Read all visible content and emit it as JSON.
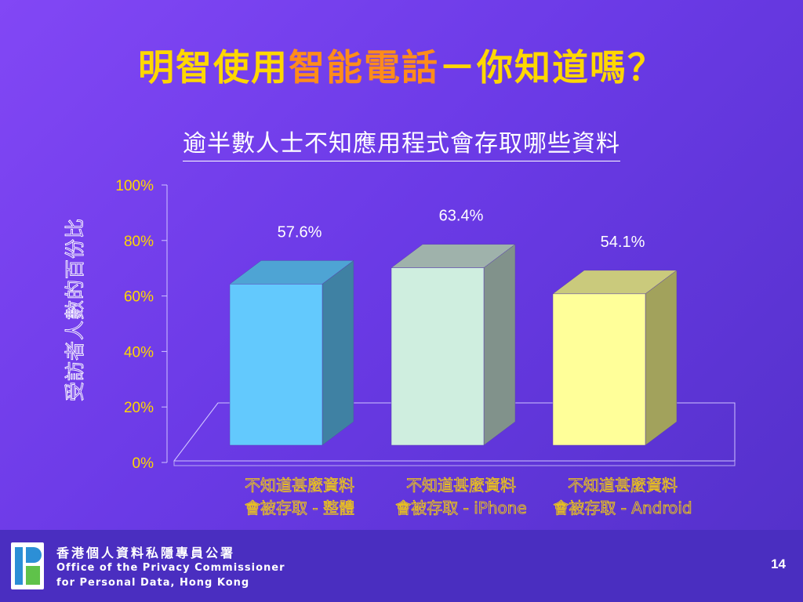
{
  "slide": {
    "title_part1": "明智使用",
    "title_part2": "智能電話",
    "title_part3": "－你知道嗎？",
    "subtitle": "逾半數人士不知應用程式會存取哪些資料",
    "page_number": "14"
  },
  "footer": {
    "org_zh": "香港個人資料私隱專員公署",
    "org_en_line1": "Office of the Privacy Commissioner",
    "org_en_line2": "for Personal Data, Hong Kong",
    "logo_icon": "pcpd-logo-icon"
  },
  "chart_data": {
    "type": "bar",
    "ylabel": "受訪者人數的百份比",
    "xlabel": "",
    "ylim": [
      0,
      100
    ],
    "yticks": [
      0,
      20,
      40,
      60,
      80,
      100
    ],
    "ytick_labels": [
      "0%",
      "20%",
      "40%",
      "60%",
      "80%",
      "100%"
    ],
    "categories": [
      {
        "line1": "不知道甚麼資料",
        "line2": "會被存取 - 整體"
      },
      {
        "line1": "不知道甚麼資料",
        "line2": "會被存取 - iPhone"
      },
      {
        "line1": "不知道甚麼資料",
        "line2": "會被存取 - Android"
      }
    ],
    "values": [
      57.6,
      63.4,
      54.1
    ],
    "data_labels": [
      "57.6%",
      "63.4%",
      "54.1%"
    ],
    "colors": [
      {
        "front": "#63c9fd",
        "side": "#3f81a3",
        "top": "#4ea4d4"
      },
      {
        "front": "#cfeedf",
        "side": "#81928b",
        "top": "#9fb2ab"
      },
      {
        "front": "#ffff99",
        "side": "#a2a25c",
        "top": "#caca7c"
      }
    ],
    "grid": false,
    "legend": "none"
  }
}
